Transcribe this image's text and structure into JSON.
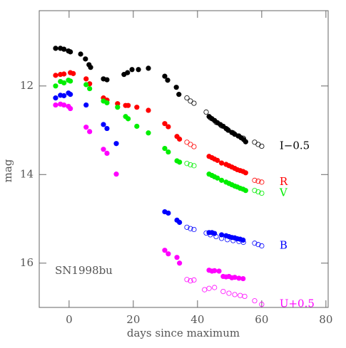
{
  "chart_data": {
    "type": "scatter",
    "xlabel": "days since maximum",
    "ylabel": "mag",
    "annotation": "SN1998bu",
    "xlim": [
      -9.3,
      80.7
    ],
    "ylim": [
      17.0,
      10.3
    ],
    "xticks": [
      0,
      20,
      40,
      60,
      80
    ],
    "yticks": [
      12,
      14,
      16
    ],
    "series": [
      {
        "color": "#000000",
        "marker": "filled",
        "x": [
          -4.2,
          -2.7,
          -1.6,
          -0.2,
          0.4,
          3.6,
          5.1,
          6.2,
          6.7,
          10.7,
          11.8,
          17.1,
          18.2,
          19.6,
          21.6,
          24.7,
          29.8,
          30.7,
          33.4,
          34.2,
          43.6,
          44.5,
          45.3,
          46.2,
          47.1,
          48.0,
          48.9,
          49.6,
          50.7,
          51.6,
          52.7,
          53.6,
          54.4,
          55.0
        ],
        "values": [
          11.15,
          11.15,
          11.17,
          11.21,
          11.23,
          11.28,
          11.39,
          11.52,
          11.58,
          11.84,
          11.86,
          11.74,
          11.7,
          11.63,
          11.63,
          11.6,
          11.78,
          11.87,
          12.03,
          12.19,
          12.69,
          12.74,
          12.78,
          12.83,
          12.87,
          12.91,
          12.96,
          13.0,
          13.05,
          13.09,
          13.13,
          13.17,
          13.21,
          13.26
        ]
      },
      {
        "color": "#000000",
        "marker": "open",
        "label": "I−0.5",
        "x": [
          36.7,
          37.8,
          38.9,
          42.7,
          44.0,
          45.8,
          47.5,
          49.3,
          51.1,
          52.9,
          54.3,
          57.8,
          58.9,
          60.0
        ],
        "values": [
          12.27,
          12.34,
          12.39,
          12.59,
          12.72,
          12.82,
          12.9,
          12.98,
          13.06,
          13.13,
          13.18,
          13.27,
          13.32,
          13.36
        ]
      },
      {
        "color": "#ff0000",
        "marker": "filled",
        "x": [
          -4.2,
          -2.7,
          -1.6,
          0.4,
          1.3,
          5.3,
          6.4,
          10.7,
          11.8,
          15.1,
          17.6,
          18.4,
          21.1,
          24.7,
          29.8,
          30.9,
          33.6,
          34.4,
          43.6,
          44.5,
          45.3,
          46.2,
          47.5,
          48.9,
          49.8,
          50.7,
          51.6,
          52.4,
          53.3,
          54.2,
          55.0
        ],
        "values": [
          11.76,
          11.74,
          11.73,
          11.7,
          11.72,
          11.84,
          11.95,
          12.27,
          12.32,
          12.4,
          12.44,
          12.44,
          12.48,
          12.55,
          12.85,
          12.92,
          13.14,
          13.2,
          13.59,
          13.62,
          13.65,
          13.68,
          13.74,
          13.77,
          13.8,
          13.83,
          13.86,
          13.89,
          13.91,
          13.93,
          13.96
        ]
      },
      {
        "color": "#ff0000",
        "marker": "open",
        "label": "R",
        "x": [
          36.7,
          37.8,
          38.9,
          57.8,
          58.9,
          60.0
        ],
        "values": [
          13.27,
          13.32,
          13.37,
          14.13,
          14.15,
          14.17
        ]
      },
      {
        "color": "#00ee00",
        "marker": "filled",
        "x": [
          -4.2,
          -2.7,
          -1.6,
          -0.2,
          0.4,
          5.3,
          6.4,
          10.7,
          11.8,
          15.1,
          17.6,
          18.4,
          21.1,
          24.7,
          29.8,
          30.9,
          33.6,
          34.4,
          43.6,
          44.5,
          45.3,
          46.2,
          47.5,
          48.9,
          49.8,
          50.7,
          51.6,
          52.4,
          53.3,
          54.2,
          55.0
        ],
        "values": [
          12.0,
          11.9,
          11.93,
          11.87,
          11.89,
          11.97,
          12.06,
          12.34,
          12.38,
          12.48,
          12.69,
          12.74,
          12.91,
          13.06,
          13.41,
          13.49,
          13.69,
          13.72,
          13.99,
          14.02,
          14.05,
          14.08,
          14.13,
          14.17,
          14.2,
          14.23,
          14.26,
          14.28,
          14.31,
          14.33,
          14.36
        ]
      },
      {
        "color": "#00ee00",
        "marker": "open",
        "label": "V",
        "x": [
          36.7,
          37.8,
          38.9,
          57.8,
          58.9,
          60.0
        ],
        "values": [
          13.75,
          13.78,
          13.8,
          14.36,
          14.39,
          14.42
        ]
      },
      {
        "color": "#0000ff",
        "marker": "filled",
        "x": [
          -4.2,
          -2.7,
          -1.6,
          -0.2,
          0.4,
          5.3,
          10.7,
          11.8,
          14.7,
          29.8,
          30.9,
          33.6,
          34.4,
          43.6,
          44.5,
          45.3,
          47.5,
          48.9,
          49.8,
          50.7,
          51.6,
          52.4,
          53.3,
          54.2
        ],
        "values": [
          12.27,
          12.21,
          12.22,
          12.16,
          12.19,
          12.43,
          12.87,
          12.96,
          13.3,
          14.84,
          14.87,
          15.03,
          15.08,
          15.31,
          15.31,
          15.33,
          15.36,
          15.38,
          15.4,
          15.42,
          15.43,
          15.45,
          15.46,
          15.48
        ]
      },
      {
        "color": "#0000ff",
        "marker": "open",
        "label": "B",
        "x": [
          36.7,
          37.8,
          38.9,
          42.7,
          44.0,
          45.8,
          47.5,
          49.3,
          51.1,
          52.9,
          54.3,
          57.8,
          58.9,
          60.0
        ],
        "values": [
          15.19,
          15.22,
          15.24,
          15.32,
          15.36,
          15.4,
          15.44,
          15.47,
          15.49,
          15.51,
          15.53,
          15.55,
          15.58,
          15.61
        ]
      },
      {
        "color": "#ff00ff",
        "marker": "filled",
        "x": [
          -4.2,
          -2.7,
          -1.6,
          -0.2,
          0.4,
          5.3,
          6.4,
          10.7,
          11.8,
          14.7,
          29.8,
          30.9,
          33.6,
          34.4,
          43.6,
          44.5,
          45.3,
          46.7,
          48.0,
          48.9,
          49.8,
          50.7,
          51.6,
          52.9,
          54.2
        ],
        "values": [
          12.43,
          12.41,
          12.43,
          12.46,
          12.51,
          12.93,
          13.03,
          13.43,
          13.52,
          13.99,
          15.71,
          15.79,
          15.87,
          16.0,
          16.16,
          16.18,
          16.17,
          16.18,
          16.3,
          16.31,
          16.3,
          16.33,
          16.32,
          16.34,
          16.35
        ]
      },
      {
        "color": "#ff00ff",
        "marker": "open",
        "label": "U+0.5",
        "x": [
          36.7,
          37.8,
          38.9,
          42.2,
          43.6,
          45.3,
          48.0,
          49.8,
          51.6,
          53.3,
          54.7,
          57.8,
          60.0
        ],
        "values": [
          16.37,
          16.4,
          16.38,
          16.6,
          16.57,
          16.55,
          16.64,
          16.68,
          16.71,
          16.73,
          16.75,
          16.85,
          16.93
        ]
      }
    ]
  }
}
